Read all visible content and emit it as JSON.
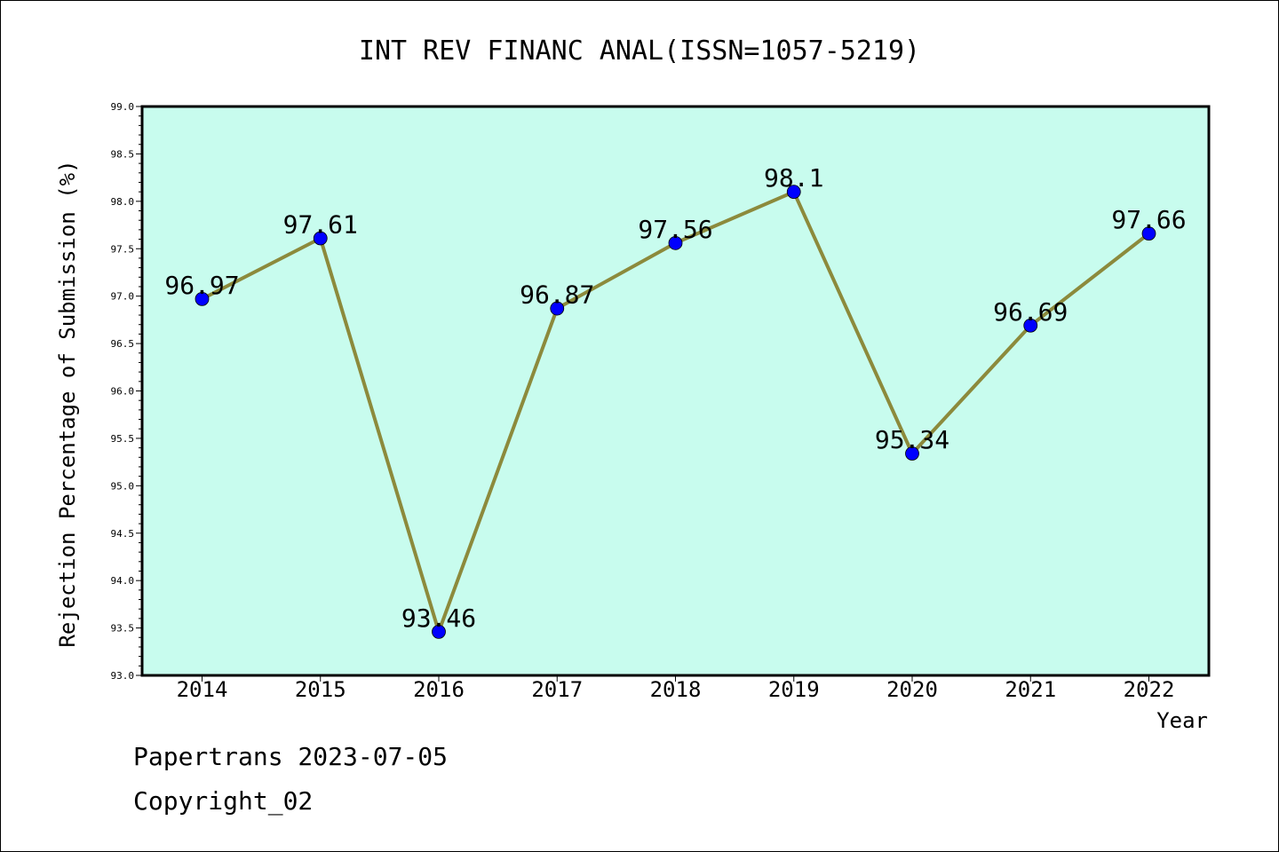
{
  "colors": {
    "plot_background": "#c8fcee",
    "line": "#8c8a3c",
    "marker": "#0000ff"
  },
  "footer": {
    "line1": "Papertrans 2023-07-05",
    "line2": "Copyright_02"
  },
  "chart_data": {
    "type": "line",
    "title": "INT REV FINANC ANAL(ISSN=1057-5219)",
    "xlabel": "Year",
    "ylabel": "Rejection Percentage of Submission (%)",
    "categories": [
      "2014",
      "2015",
      "2016",
      "2017",
      "2018",
      "2019",
      "2020",
      "2021",
      "2022"
    ],
    "series": [
      {
        "values": [
          96.97,
          97.61,
          93.46,
          96.87,
          97.56,
          98.1,
          95.34,
          96.69,
          97.66
        ]
      }
    ],
    "data_labels": [
      "96.97",
      "97.61",
      "93.46",
      "96.87",
      "97.56",
      "98.1",
      "95.34",
      "96.69",
      "97.66"
    ],
    "ylim": [
      93.0,
      99.0
    ],
    "yticks": [
      "93.0",
      "93.5",
      "94.0",
      "94.5",
      "95.0",
      "95.5",
      "96.0",
      "96.5",
      "97.0",
      "97.5",
      "98.0",
      "98.5",
      "99.0"
    ],
    "grid": false
  }
}
